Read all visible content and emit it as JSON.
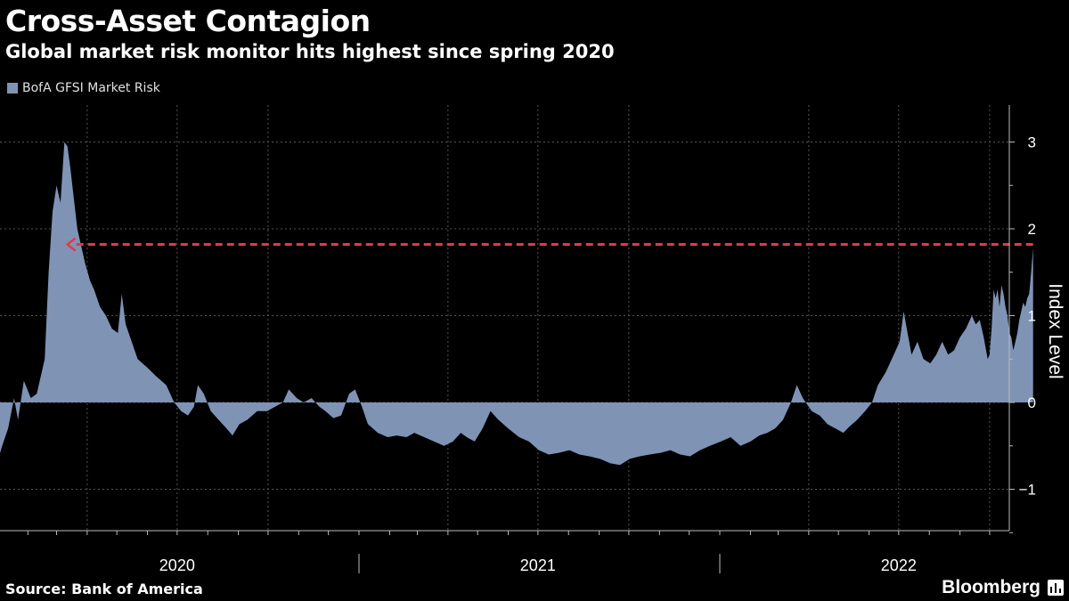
{
  "header": {
    "title": "Cross-Asset Contagion",
    "subtitle": "Global market risk monitor hits highest since spring 2020"
  },
  "footer": {
    "source": "Source: Bank of America",
    "brand": "Bloomberg"
  },
  "colors": {
    "background": "#000000",
    "series": "#7f93b5",
    "annotation": "#e3384a",
    "grid": "#555555",
    "text": "#ffffff"
  },
  "chart_data": {
    "type": "area",
    "title": "Cross-Asset Contagion",
    "subtitle": "Global market risk monitor hits highest since spring 2020",
    "xlabel": "",
    "ylabel": "Index Level",
    "xlim": [
      "2019-09-01",
      "2022-10-06"
    ],
    "ylim": [
      -1.5,
      3.45
    ],
    "y_ticks": [
      -1,
      0,
      1,
      2,
      3
    ],
    "x_tick_labels": [
      {
        "label": "2020",
        "date": "2020-07-01"
      },
      {
        "label": "2021",
        "date": "2021-07-01"
      },
      {
        "label": "2022",
        "date": "2022-07-01"
      }
    ],
    "year_separators": [
      "2021-01-01",
      "2022-01-01"
    ],
    "grid": true,
    "legend_position": "top-left",
    "series": [
      {
        "name": "BofA GFSI Market Risk",
        "color": "#7f93b5",
        "points": [
          [
            "2019-09-01",
            -0.85
          ],
          [
            "2019-09-10",
            -1.0
          ],
          [
            "2019-09-18",
            -1.05
          ],
          [
            "2019-09-28",
            -0.95
          ],
          [
            "2019-10-08",
            -0.8
          ],
          [
            "2019-10-18",
            -0.9
          ],
          [
            "2019-10-28",
            -0.85
          ],
          [
            "2019-11-08",
            -0.9
          ],
          [
            "2019-11-18",
            -0.8
          ],
          [
            "2019-11-28",
            -0.75
          ],
          [
            "2019-12-08",
            -0.85
          ],
          [
            "2019-12-18",
            -0.9
          ],
          [
            "2019-12-28",
            -0.85
          ],
          [
            "2020-01-06",
            -0.5
          ],
          [
            "2020-01-12",
            -0.3
          ],
          [
            "2020-01-18",
            0.05
          ],
          [
            "2020-01-22",
            -0.2
          ],
          [
            "2020-01-28",
            0.25
          ],
          [
            "2020-02-04",
            0.05
          ],
          [
            "2020-02-10",
            0.1
          ],
          [
            "2020-02-18",
            0.5
          ],
          [
            "2020-02-22",
            1.5
          ],
          [
            "2020-02-26",
            2.2
          ],
          [
            "2020-03-01",
            2.5
          ],
          [
            "2020-03-05",
            2.3
          ],
          [
            "2020-03-09",
            3.0
          ],
          [
            "2020-03-12",
            2.95
          ],
          [
            "2020-03-15",
            2.7
          ],
          [
            "2020-03-18",
            2.4
          ],
          [
            "2020-03-22",
            2.0
          ],
          [
            "2020-03-26",
            1.8
          ],
          [
            "2020-03-30",
            1.6
          ],
          [
            "2020-04-04",
            1.4
          ],
          [
            "2020-04-08",
            1.3
          ],
          [
            "2020-04-14",
            1.1
          ],
          [
            "2020-04-20",
            1.0
          ],
          [
            "2020-04-26",
            0.85
          ],
          [
            "2020-05-02",
            0.8
          ],
          [
            "2020-05-06",
            1.25
          ],
          [
            "2020-05-10",
            0.9
          ],
          [
            "2020-05-16",
            0.7
          ],
          [
            "2020-05-22",
            0.5
          ],
          [
            "2020-06-01",
            0.4
          ],
          [
            "2020-06-10",
            0.3
          ],
          [
            "2020-06-20",
            0.2
          ],
          [
            "2020-06-28",
            0.0
          ],
          [
            "2020-07-05",
            -0.1
          ],
          [
            "2020-07-12",
            -0.15
          ],
          [
            "2020-07-18",
            -0.05
          ],
          [
            "2020-07-22",
            0.2
          ],
          [
            "2020-07-28",
            0.1
          ],
          [
            "2020-08-04",
            -0.1
          ],
          [
            "2020-08-12",
            -0.2
          ],
          [
            "2020-08-20",
            -0.3
          ],
          [
            "2020-08-26",
            -0.38
          ],
          [
            "2020-09-02",
            -0.25
          ],
          [
            "2020-09-10",
            -0.2
          ],
          [
            "2020-09-20",
            -0.1
          ],
          [
            "2020-09-30",
            -0.1
          ],
          [
            "2020-10-08",
            -0.05
          ],
          [
            "2020-10-16",
            0.0
          ],
          [
            "2020-10-22",
            0.15
          ],
          [
            "2020-10-30",
            0.05
          ],
          [
            "2020-11-06",
            0.0
          ],
          [
            "2020-11-14",
            0.05
          ],
          [
            "2020-11-22",
            -0.05
          ],
          [
            "2020-11-28",
            -0.1
          ],
          [
            "2020-12-06",
            -0.18
          ],
          [
            "2020-12-14",
            -0.15
          ],
          [
            "2020-12-22",
            0.1
          ],
          [
            "2020-12-28",
            0.15
          ],
          [
            "2021-01-04",
            -0.05
          ],
          [
            "2021-01-10",
            -0.25
          ],
          [
            "2021-01-20",
            -0.35
          ],
          [
            "2021-01-30",
            -0.4
          ],
          [
            "2021-02-08",
            -0.38
          ],
          [
            "2021-02-18",
            -0.4
          ],
          [
            "2021-02-26",
            -0.35
          ],
          [
            "2021-03-08",
            -0.4
          ],
          [
            "2021-03-18",
            -0.45
          ],
          [
            "2021-03-28",
            -0.5
          ],
          [
            "2021-04-06",
            -0.45
          ],
          [
            "2021-04-14",
            -0.35
          ],
          [
            "2021-04-20",
            -0.4
          ],
          [
            "2021-04-28",
            -0.45
          ],
          [
            "2021-05-06",
            -0.3
          ],
          [
            "2021-05-14",
            -0.1
          ],
          [
            "2021-05-22",
            -0.2
          ],
          [
            "2021-06-01",
            -0.3
          ],
          [
            "2021-06-12",
            -0.4
          ],
          [
            "2021-06-22",
            -0.45
          ],
          [
            "2021-07-02",
            -0.55
          ],
          [
            "2021-07-12",
            -0.6
          ],
          [
            "2021-07-22",
            -0.58
          ],
          [
            "2021-08-02",
            -0.55
          ],
          [
            "2021-08-12",
            -0.6
          ],
          [
            "2021-08-22",
            -0.62
          ],
          [
            "2021-09-02",
            -0.65
          ],
          [
            "2021-09-12",
            -0.7
          ],
          [
            "2021-09-22",
            -0.72
          ],
          [
            "2021-10-02",
            -0.65
          ],
          [
            "2021-10-12",
            -0.62
          ],
          [
            "2021-10-22",
            -0.6
          ],
          [
            "2021-11-02",
            -0.58
          ],
          [
            "2021-11-12",
            -0.55
          ],
          [
            "2021-11-22",
            -0.6
          ],
          [
            "2021-12-02",
            -0.62
          ],
          [
            "2021-12-12",
            -0.55
          ],
          [
            "2021-12-22",
            -0.5
          ],
          [
            "2022-01-02",
            -0.45
          ],
          [
            "2022-01-12",
            -0.4
          ],
          [
            "2022-01-22",
            -0.5
          ],
          [
            "2022-02-01",
            -0.45
          ],
          [
            "2022-02-10",
            -0.38
          ],
          [
            "2022-02-18",
            -0.35
          ],
          [
            "2022-02-26",
            -0.3
          ],
          [
            "2022-03-06",
            -0.2
          ],
          [
            "2022-03-14",
            0.0
          ],
          [
            "2022-03-20",
            0.2
          ],
          [
            "2022-03-26",
            0.05
          ],
          [
            "2022-04-04",
            -0.1
          ],
          [
            "2022-04-12",
            -0.15
          ],
          [
            "2022-04-20",
            -0.25
          ],
          [
            "2022-04-28",
            -0.3
          ],
          [
            "2022-05-06",
            -0.35
          ],
          [
            "2022-05-12",
            -0.28
          ],
          [
            "2022-05-20",
            -0.2
          ],
          [
            "2022-05-28",
            -0.1
          ],
          [
            "2022-06-04",
            0.0
          ],
          [
            "2022-06-10",
            0.2
          ],
          [
            "2022-06-18",
            0.35
          ],
          [
            "2022-06-26",
            0.55
          ],
          [
            "2022-07-02",
            0.7
          ],
          [
            "2022-07-06",
            1.05
          ],
          [
            "2022-07-10",
            0.8
          ],
          [
            "2022-07-14",
            0.55
          ],
          [
            "2022-07-20",
            0.7
          ],
          [
            "2022-07-26",
            0.5
          ],
          [
            "2022-08-02",
            0.45
          ],
          [
            "2022-08-08",
            0.55
          ],
          [
            "2022-08-14",
            0.7
          ],
          [
            "2022-08-20",
            0.55
          ],
          [
            "2022-08-26",
            0.6
          ],
          [
            "2022-09-01",
            0.75
          ],
          [
            "2022-09-07",
            0.85
          ],
          [
            "2022-09-13",
            1.0
          ],
          [
            "2022-09-17",
            0.9
          ],
          [
            "2022-09-21",
            0.95
          ],
          [
            "2022-09-25",
            0.75
          ],
          [
            "2022-09-29",
            0.5
          ],
          [
            "2022-10-01",
            0.55
          ],
          [
            "2022-10-03",
            0.85
          ],
          [
            "2022-10-05",
            1.3
          ],
          [
            "2022-10-07",
            1.2
          ],
          [
            "2022-10-09",
            1.3
          ],
          [
            "2022-10-11",
            1.1
          ],
          [
            "2022-10-13",
            1.35
          ],
          [
            "2022-10-15",
            1.25
          ],
          [
            "2022-10-17",
            1.1
          ],
          [
            "2022-10-19",
            1.0
          ],
          [
            "2022-10-21",
            0.8
          ],
          [
            "2022-10-23",
            0.75
          ],
          [
            "2022-10-25",
            0.6
          ],
          [
            "2022-10-27",
            0.7
          ],
          [
            "2022-10-29",
            0.8
          ],
          [
            "2022-10-31",
            0.95
          ],
          [
            "2022-11-02",
            1.05
          ],
          [
            "2022-11-04",
            1.15
          ],
          [
            "2022-11-06",
            1.1
          ],
          [
            "2022-11-08",
            1.2
          ],
          [
            "2022-11-10",
            1.25
          ],
          [
            "2022-11-12",
            1.5
          ],
          [
            "2022-11-14",
            1.78
          ]
        ]
      }
    ],
    "annotations": [
      {
        "type": "dashed-arrow",
        "from": "2022-11-14",
        "to": "2020-03-12",
        "y": 1.82,
        "color": "#e3384a"
      }
    ]
  }
}
